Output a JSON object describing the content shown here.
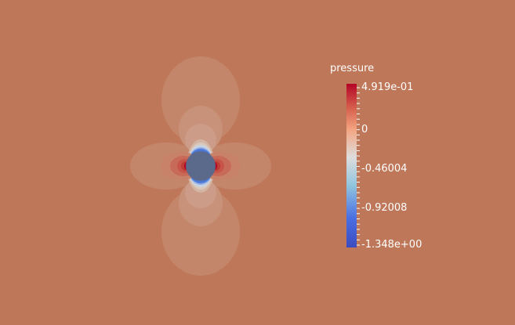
{
  "colors": {
    "background": "#bf7759",
    "cylinder": "#5b6a8a",
    "field_levels": [
      "#bf7759",
      "#c4866b",
      "#c8917a",
      "#cc9c89",
      "#d2b5a4",
      "#d8c9bc",
      "#c8d2e2",
      "#8fabe6",
      "#4a78d8"
    ],
    "high_levels": [
      "#c8826a",
      "#c86a58",
      "#c85448",
      "#bd3a35",
      "#b40426"
    ],
    "colormap": [
      "#b40426",
      "#d6604d",
      "#f4a582",
      "#dddddd",
      "#92c5de",
      "#4a6fe3",
      "#3b4cc0"
    ]
  },
  "colorbar": {
    "title": "pressure",
    "max": 0.4919,
    "min": -1.348,
    "labels": [
      {
        "text": "4.919e-01",
        "value": 0.4919
      },
      {
        "text": "0",
        "value": 0.0
      },
      {
        "text": "-0.46004",
        "value": -0.46004
      },
      {
        "text": "-0.92008",
        "value": -0.92008
      },
      {
        "text": "-1.348e+00",
        "value": -1.348
      }
    ]
  }
}
